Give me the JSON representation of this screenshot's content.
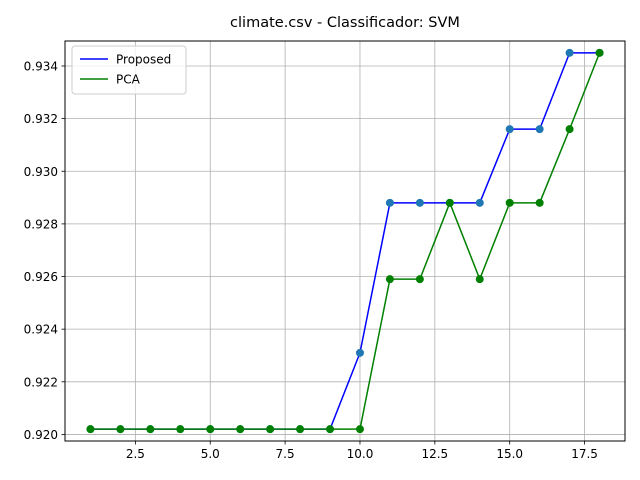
{
  "chart_data": {
    "type": "line",
    "title": "climate.csv - Classificador: SVM",
    "xlabel": "",
    "ylabel": "",
    "xlim": [
      0.15,
      18.85
    ],
    "ylim": [
      0.91975,
      0.93495
    ],
    "xticks": [
      2.5,
      5.0,
      7.5,
      10.0,
      12.5,
      15.0,
      17.5
    ],
    "xtick_labels": [
      "2.5",
      "5.0",
      "7.5",
      "10.0",
      "12.5",
      "15.0",
      "17.5"
    ],
    "yticks": [
      0.92,
      0.922,
      0.924,
      0.926,
      0.928,
      0.93,
      0.932,
      0.934
    ],
    "ytick_labels": [
      "0.920",
      "0.922",
      "0.924",
      "0.926",
      "0.928",
      "0.930",
      "0.932",
      "0.934"
    ],
    "grid": true,
    "legend_position": "top-left",
    "x": [
      1,
      2,
      3,
      4,
      5,
      6,
      7,
      8,
      9,
      10,
      11,
      12,
      13,
      14,
      15,
      16,
      17,
      18
    ],
    "series": [
      {
        "name": "Proposed",
        "color": "#0000ff",
        "marker_color": "#1f77b4",
        "values": [
          0.9202,
          0.9202,
          0.9202,
          0.9202,
          0.9202,
          0.9202,
          0.9202,
          0.9202,
          0.9202,
          0.9231,
          0.9288,
          0.9288,
          0.9288,
          0.9288,
          0.9316,
          0.9316,
          0.9345,
          0.9345
        ]
      },
      {
        "name": "PCA",
        "color": "#008000",
        "marker_color": "#008000",
        "values": [
          0.9202,
          0.9202,
          0.9202,
          0.9202,
          0.9202,
          0.9202,
          0.9202,
          0.9202,
          0.9202,
          0.9202,
          0.9259,
          0.9259,
          0.9288,
          0.9259,
          0.9288,
          0.9288,
          0.9316,
          0.9345
        ]
      }
    ]
  }
}
